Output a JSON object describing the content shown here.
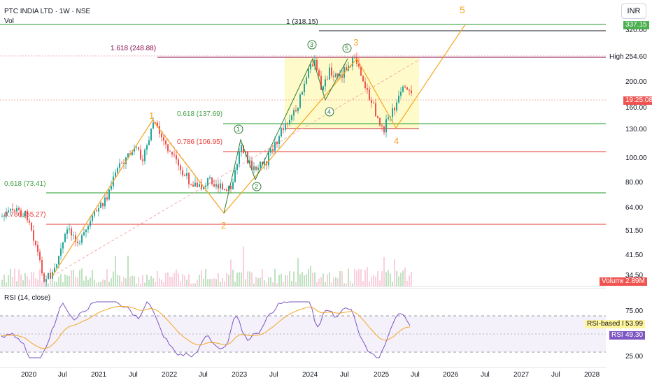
{
  "header": {
    "title": "PTC INDIA LTD · 1W · NSE",
    "vol_label": "Vol",
    "currency": "INR"
  },
  "annotations": {
    "fib_1": "1 (318.15)",
    "fib_1618": "1.618 (248.88)",
    "fib_0618_a": "0.618 (137.69)",
    "fib_0786_a": "0.786 (106.95)",
    "fib_0618_b": "0.618 (73.41)",
    "fib_0786_b": "0.786 (55.27)",
    "wave_1": "1",
    "wave_2": "2",
    "wave_3": "3",
    "wave_4": "4",
    "wave_5": "5",
    "sub_1": "1",
    "sub_2": "2",
    "sub_3": "3",
    "sub_4": "4",
    "sub_5": "5"
  },
  "price_axis": {
    "ticks": [
      "320.00",
      "254.60",
      "200.00",
      "160.00",
      "130.00",
      "100.00",
      "80.00",
      "64.00",
      "51.50",
      "41.50",
      "34.50"
    ],
    "high_label": "High",
    "price_tag_337": "337.15",
    "price_tag_2546": "254.60",
    "price_tag_current": "19:25:08",
    "volume_label": "Volume",
    "volume_value": "2.89M"
  },
  "rsi_panel": {
    "title": "RSI (14, close)",
    "ticks": [
      "75.00",
      "25.00"
    ],
    "ma_label": "RSI-based MA",
    "ma_value": "53.99",
    "rsi_label": "RSI",
    "rsi_value": "49.30"
  },
  "time_axis": {
    "labels": [
      "2020",
      "Jul",
      "2021",
      "Jul",
      "2022",
      "Jul",
      "2023",
      "Jul",
      "2024",
      "Jul",
      "2025",
      "Jul",
      "2026",
      "Jul",
      "2027",
      "Jul",
      "2028"
    ]
  },
  "colors": {
    "green": "#4caf50",
    "red": "#e91e63",
    "orange": "#f5a623",
    "purple": "#7e57c2",
    "candle_up": "#26a69a",
    "candle_down": "#ef5350"
  }
}
